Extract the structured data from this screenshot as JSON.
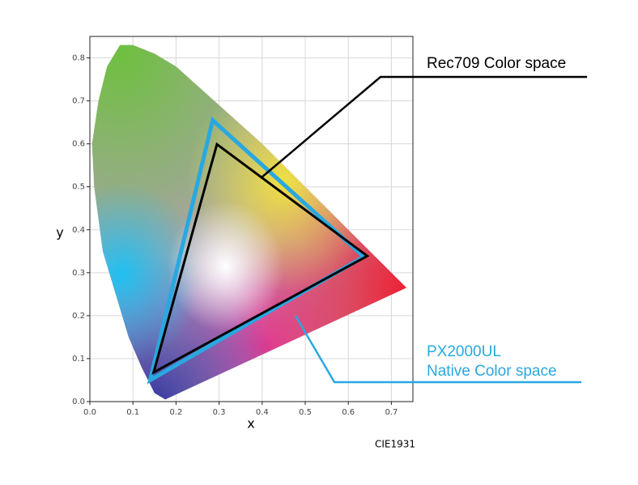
{
  "chart_data": {
    "type": "line",
    "xlabel": "x",
    "ylabel": "y",
    "footnote": "CIE1931",
    "xlim": [
      0,
      0.75
    ],
    "ylim": [
      0,
      0.85
    ],
    "xticks": [
      {
        "value": 0,
        "label": "0.0"
      },
      0.1,
      0.2,
      0.3,
      0.4,
      0.5,
      0.6,
      0.7
    ],
    "yticks": [
      {
        "value": 0,
        "label": "0.0"
      },
      0.1,
      0.2,
      0.3,
      0.4,
      0.5,
      0.6,
      0.7,
      0.8
    ],
    "grid": true,
    "locus": {
      "x": [
        0.175,
        0.15,
        0.14,
        0.12,
        0.09,
        0.06,
        0.03,
        0.01,
        0.005,
        0.02,
        0.04,
        0.07,
        0.1,
        0.15,
        0.2,
        0.3,
        0.4,
        0.5,
        0.6,
        0.735
      ],
      "y": [
        0.005,
        0.02,
        0.04,
        0.08,
        0.15,
        0.25,
        0.35,
        0.5,
        0.6,
        0.7,
        0.78,
        0.83,
        0.83,
        0.81,
        0.78,
        0.69,
        0.6,
        0.5,
        0.4,
        0.265
      ]
    },
    "series": [
      {
        "color": "#29a8e0",
        "x": [
          0.285,
          0.636,
          0.14
        ],
        "y": [
          0.655,
          0.337,
          0.05
        ]
      },
      {
        "color": "#000000",
        "x": [
          0.295,
          0.644,
          0.148
        ],
        "y": [
          0.599,
          0.339,
          0.068
        ]
      }
    ],
    "annotations": [
      {
        "lines": [
          "Rec709  Color space"
        ],
        "color": "#000000"
      },
      {
        "lines": [
          "PX2000UL",
          "Native Color space"
        ],
        "color": "#29a8e0"
      }
    ]
  }
}
